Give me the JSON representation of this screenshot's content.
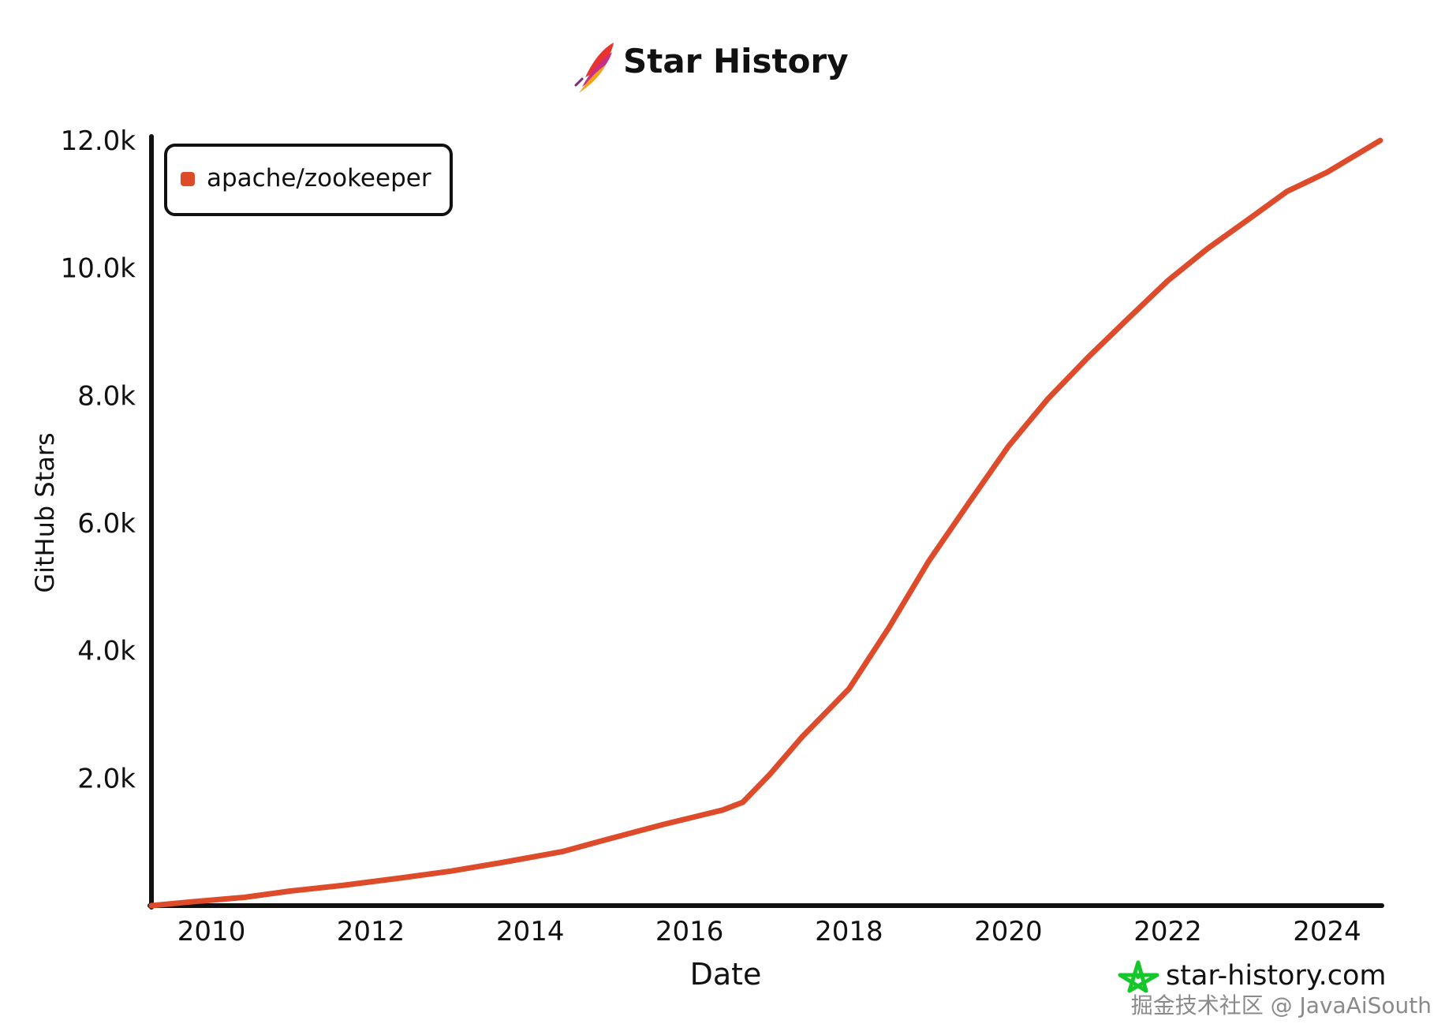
{
  "page": {
    "title": "Star History",
    "brand": "star-history.com",
    "watermark": "掘金技术社区 @ JavaAiSouth"
  },
  "icons": {
    "title_icon": "apache-feather-icon",
    "brand_icon": "star-history-logo-icon"
  },
  "colors": {
    "series": "#dd4b2a",
    "axis": "#111111",
    "brand_icon": "#16c72c",
    "watermark": "#8a8a8a"
  },
  "chart_data": {
    "type": "line",
    "title": "Star History",
    "xlabel": "Date",
    "ylabel": "GitHub Stars",
    "xlim": [
      "2009-04-01",
      "2024-09-01"
    ],
    "ylim": [
      0,
      12000
    ],
    "grid": false,
    "legend": "top-left",
    "x_ticks": [
      "2010",
      "2012",
      "2014",
      "2016",
      "2018",
      "2020",
      "2022",
      "2024"
    ],
    "y_ticks": [
      "2.0k",
      "4.0k",
      "6.0k",
      "8.0k",
      "10.0k",
      "12.0k"
    ],
    "series": [
      {
        "name": "apache/zookeeper",
        "color": "#dd4b2a",
        "points": [
          {
            "x": "2009-04-01",
            "y": 0
          },
          {
            "x": "2009-10-01",
            "y": 60
          },
          {
            "x": "2010-06-01",
            "y": 130
          },
          {
            "x": "2011-01-01",
            "y": 230
          },
          {
            "x": "2011-09-01",
            "y": 320
          },
          {
            "x": "2012-06-01",
            "y": 440
          },
          {
            "x": "2013-01-01",
            "y": 540
          },
          {
            "x": "2013-09-01",
            "y": 680
          },
          {
            "x": "2014-06-01",
            "y": 850
          },
          {
            "x": "2015-01-01",
            "y": 1050
          },
          {
            "x": "2015-09-01",
            "y": 1270
          },
          {
            "x": "2016-06-01",
            "y": 1500
          },
          {
            "x": "2016-09-01",
            "y": 1620
          },
          {
            "x": "2017-01-01",
            "y": 2050
          },
          {
            "x": "2017-06-01",
            "y": 2650
          },
          {
            "x": "2018-01-01",
            "y": 3400
          },
          {
            "x": "2018-07-01",
            "y": 4350
          },
          {
            "x": "2019-01-01",
            "y": 5400
          },
          {
            "x": "2019-07-01",
            "y": 6300
          },
          {
            "x": "2020-01-01",
            "y": 7200
          },
          {
            "x": "2020-07-01",
            "y": 7950
          },
          {
            "x": "2021-01-01",
            "y": 8600
          },
          {
            "x": "2021-07-01",
            "y": 9200
          },
          {
            "x": "2022-01-01",
            "y": 9800
          },
          {
            "x": "2022-07-01",
            "y": 10300
          },
          {
            "x": "2023-01-01",
            "y": 10750
          },
          {
            "x": "2023-07-01",
            "y": 11200
          },
          {
            "x": "2024-01-01",
            "y": 11500
          },
          {
            "x": "2024-09-01",
            "y": 12000
          }
        ]
      }
    ]
  }
}
